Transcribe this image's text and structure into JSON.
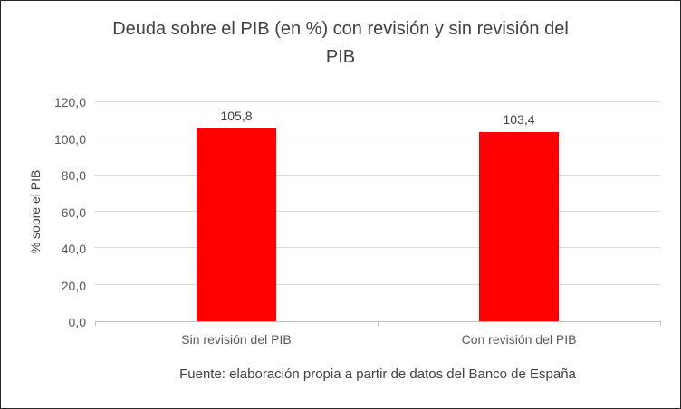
{
  "footer": "Fuente: elaboración propia a partir de datos del Banco de España",
  "chart_data": {
    "type": "bar",
    "title": "Deuda sobre el PIB (en %) con revisión y sin revisión del PIB",
    "categories": [
      "Sin revisión del PIB",
      "Con revisión del PIB"
    ],
    "values": [
      105.8,
      103.4
    ],
    "data_labels": [
      "105,8",
      "103,4"
    ],
    "xlabel": "",
    "ylabel": "% sobre el PIB",
    "ylim": [
      0,
      120
    ],
    "ytick_step": 20,
    "ytick_labels": [
      "0,0",
      "20,0",
      "40,0",
      "60,0",
      "80,0",
      "100,0",
      "120,0"
    ],
    "bar_color": "#ff0000",
    "gridline_color": "#d9d9d9",
    "grid": true,
    "legend": false
  }
}
